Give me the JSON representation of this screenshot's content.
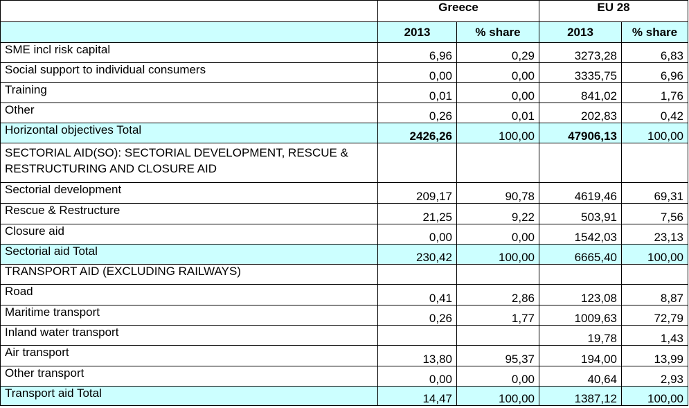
{
  "header": {
    "greece": "Greece",
    "eu": "EU 28",
    "greece_year": "2013",
    "greece_share": "% share",
    "eu_year": "2013",
    "eu_share": "% share"
  },
  "rows": [
    {
      "label": "SME incl risk capital",
      "g2013": "6,96",
      "gshare": "0,29",
      "eu2013": "3273,28",
      "eushare": "6,83"
    },
    {
      "label": "Social support to individual consumers",
      "g2013": "0,00",
      "gshare": "0,00",
      "eu2013": "3335,75",
      "eushare": "6,96"
    },
    {
      "label": "Training",
      "g2013": "0,01",
      "gshare": "0,00",
      "eu2013": "841,02",
      "eushare": "1,76"
    },
    {
      "label": "Other",
      "g2013": "0,26",
      "gshare": "0,01",
      "eu2013": "202,83",
      "eushare": "0,42"
    },
    {
      "label": "Horizontal objectives Total",
      "g2013": "2426,26",
      "gshare": "100,00",
      "eu2013": "47906,13",
      "eushare": "100,00"
    },
    {
      "label": "SECTORIAL AID(SO): SECTORIAL DEVELOPMENT, RESCUE & RESTRUCTURING AND CLOSURE AID",
      "g2013": "",
      "gshare": "",
      "eu2013": "",
      "eushare": ""
    },
    {
      "label": "Sectorial development",
      "g2013": "209,17",
      "gshare": "90,78",
      "eu2013": "4619,46",
      "eushare": "69,31"
    },
    {
      "label": "Rescue & Restructure",
      "g2013": "21,25",
      "gshare": "9,22",
      "eu2013": "503,91",
      "eushare": "7,56"
    },
    {
      "label": "Closure aid",
      "g2013": "0,00",
      "gshare": "0,00",
      "eu2013": "1542,03",
      "eushare": "23,13"
    },
    {
      "label": "Sectorial aid Total",
      "g2013": "230,42",
      "gshare": "100,00",
      "eu2013": "6665,40",
      "eushare": "100,00"
    },
    {
      "label": "TRANSPORT AID (EXCLUDING RAILWAYS)",
      "g2013": "",
      "gshare": "",
      "eu2013": "",
      "eushare": ""
    },
    {
      "label": "Road",
      "g2013": "0,41",
      "gshare": "2,86",
      "eu2013": "123,08",
      "eushare": "8,87"
    },
    {
      "label": "Maritime transport",
      "g2013": "0,26",
      "gshare": "1,77",
      "eu2013": "1009,63",
      "eushare": "72,79"
    },
    {
      "label": "Inland water transport",
      "g2013": "",
      "gshare": "",
      "eu2013": "19,78",
      "eushare": "1,43"
    },
    {
      "label": "Air transport",
      "g2013": "13,80",
      "gshare": "95,37",
      "eu2013": "194,00",
      "eushare": "13,99"
    },
    {
      "label": "Other transport",
      "g2013": "0,00",
      "gshare": "0,00",
      "eu2013": "40,64",
      "eushare": "2,93"
    },
    {
      "label": "Transport aid Total",
      "g2013": "14,47",
      "gshare": "100,00",
      "eu2013": "1387,12",
      "eushare": "100,00"
    }
  ],
  "colors": {
    "header_fill": "#ccffff",
    "total_fill": "#ccffff",
    "border": "#000000"
  }
}
